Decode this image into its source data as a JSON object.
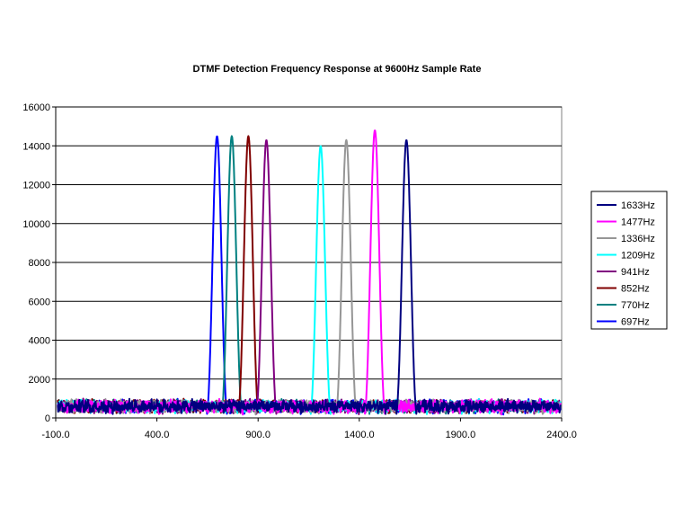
{
  "chart_data": {
    "type": "line",
    "title": "DTMF Detection Frequency Response at 9600Hz Sample Rate",
    "xlabel": "",
    "ylabel": "",
    "xlim": [
      -100,
      2400
    ],
    "ylim": [
      0,
      16000
    ],
    "x_ticks": [
      "-100.0",
      "400.0",
      "900.0",
      "1400.0",
      "1900.0",
      "2400.0"
    ],
    "y_ticks": [
      "0",
      "2000",
      "4000",
      "6000",
      "8000",
      "10000",
      "12000",
      "14000",
      "16000"
    ],
    "grid": "horizontal",
    "legend_position": "right",
    "series": [
      {
        "name": "1633Hz",
        "color": "#000080",
        "center": 1633,
        "peak": 14300
      },
      {
        "name": "1477Hz",
        "color": "#ff00ff",
        "center": 1477,
        "peak": 14800
      },
      {
        "name": "1336Hz",
        "color": "#969696",
        "center": 1336,
        "peak": 14300
      },
      {
        "name": "1209Hz",
        "color": "#00ffff",
        "center": 1209,
        "peak": 14000
      },
      {
        "name": "941Hz",
        "color": "#800080",
        "center": 941,
        "peak": 14300
      },
      {
        "name": "852Hz",
        "color": "#800000",
        "center": 852,
        "peak": 14500
      },
      {
        "name": "770Hz",
        "color": "#008080",
        "center": 770,
        "peak": 14500
      },
      {
        "name": "697Hz",
        "color": "#0000ff",
        "center": 697,
        "peak": 14500
      }
    ]
  }
}
